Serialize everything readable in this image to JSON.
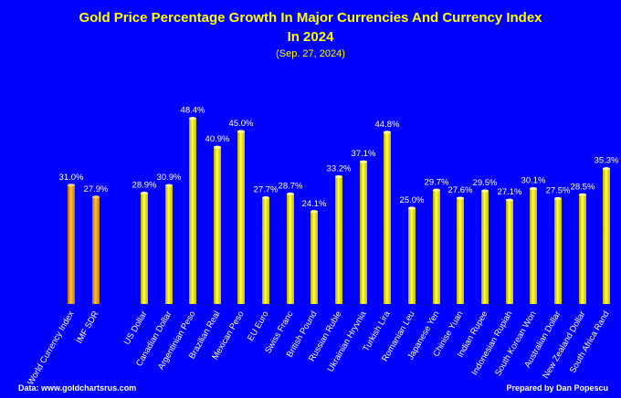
{
  "chart_data": {
    "type": "bar",
    "title_line1": "Gold Price Percentage Growth In Major Currencies And Currency Index",
    "title_line2": "In 2024",
    "subtitle": "(Sep. 27, 2024)",
    "categories": [
      "World Currency Index",
      "IMF SDR",
      "US Dollar",
      "Canadian Dollar",
      "Argentinian Peso",
      "Brazilian Real",
      "Mexican Peso",
      "EU Euro",
      "Swiss Franc",
      "British Pound",
      "Russian Ruble",
      "Ukrainian Hryvnia",
      "Turkish Lira",
      "Romanian Leu",
      "Japanese Yen",
      "Chinise Yuan",
      "Indian Rupee",
      "Indonesian Rupiah",
      "South Korean Won",
      "Australian Dollar",
      "New Zealand Dollar",
      "South Africa Rand"
    ],
    "values": [
      31.0,
      27.9,
      28.9,
      30.9,
      48.4,
      40.9,
      45.0,
      27.7,
      28.7,
      24.1,
      33.2,
      37.1,
      44.8,
      25.0,
      29.7,
      27.6,
      29.5,
      27.1,
      30.1,
      27.5,
      28.5,
      35.3
    ],
    "labels": [
      "31.0%",
      "27.9%",
      "28.9%",
      "30.9%",
      "48.4%",
      "40.9%",
      "45.0%",
      "27.7%",
      "28.7%",
      "24.1%",
      "33.2%",
      "37.1%",
      "44.8%",
      "25.0%",
      "29.7%",
      "27.6%",
      "29.5%",
      "27.1%",
      "30.1%",
      "27.5%",
      "28.5%",
      "35.3%"
    ],
    "groups": [
      "index",
      "index",
      "currency",
      "currency",
      "currency",
      "currency",
      "currency",
      "currency",
      "currency",
      "currency",
      "currency",
      "currency",
      "currency",
      "currency",
      "currency",
      "currency",
      "currency",
      "currency",
      "currency",
      "currency",
      "currency",
      "currency"
    ],
    "colors": {
      "index": "#f0a020",
      "currency": "#ffff00",
      "background": "#0000ff",
      "title": "#ffff00",
      "text": "#ffffff"
    },
    "ylim": [
      0,
      50
    ],
    "grid": false,
    "xlabel": "",
    "ylabel": ""
  },
  "footer": {
    "left": "Data: www.goldchartsrus.com",
    "right": "Prepared by Dan Popescu"
  }
}
